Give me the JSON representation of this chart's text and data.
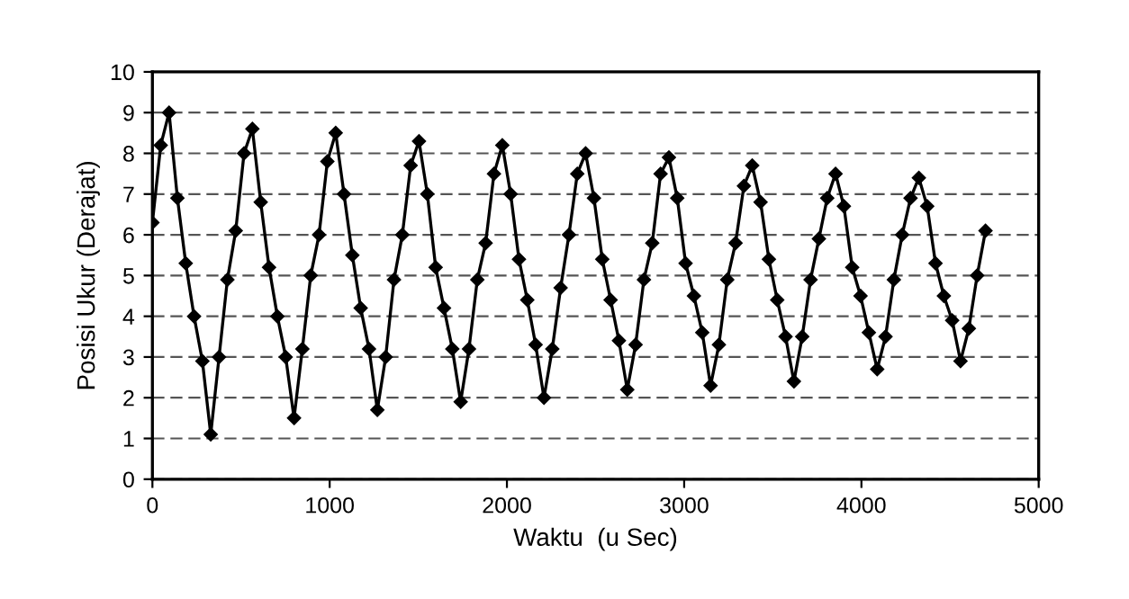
{
  "chart_data": {
    "type": "line",
    "xlabel": "Waktu  (u Sec)",
    "ylabel": "Posisi Ukur (Derajat)",
    "x": [
      0,
      47,
      94,
      141,
      188,
      235,
      282,
      329,
      376,
      423,
      470,
      517,
      564,
      611,
      658,
      705,
      752,
      799,
      846,
      893,
      940,
      987,
      1034,
      1081,
      1128,
      1175,
      1222,
      1269,
      1316,
      1363,
      1410,
      1457,
      1504,
      1551,
      1598,
      1645,
      1692,
      1739,
      1786,
      1833,
      1880,
      1927,
      1974,
      2021,
      2068,
      2115,
      2162,
      2209,
      2256,
      2303,
      2350,
      2397,
      2444,
      2491,
      2538,
      2585,
      2632,
      2679,
      2726,
      2773,
      2820,
      2867,
      2914,
      2961,
      3008,
      3055,
      3102,
      3149,
      3196,
      3243,
      3290,
      3337,
      3384,
      3431,
      3478,
      3525,
      3572,
      3619,
      3666,
      3713,
      3760,
      3807,
      3854,
      3901,
      3948,
      3995,
      4042,
      4089,
      4136,
      4183,
      4230,
      4277,
      4324,
      4371,
      4418,
      4465,
      4512,
      4559,
      4606,
      4653,
      4700
    ],
    "series": [
      {
        "color": "#000000",
        "values": [
          6.3,
          8.2,
          9.0,
          6.9,
          5.3,
          4.0,
          2.9,
          1.1,
          3.0,
          4.9,
          6.1,
          8.0,
          8.6,
          6.8,
          5.2,
          4.0,
          3.0,
          1.5,
          3.2,
          5.0,
          6.0,
          7.8,
          8.5,
          7.0,
          5.5,
          4.2,
          3.2,
          1.7,
          3.0,
          4.9,
          6.0,
          7.7,
          8.3,
          7.0,
          5.2,
          4.2,
          3.2,
          1.9,
          3.2,
          4.9,
          5.8,
          7.5,
          8.2,
          7.0,
          5.4,
          4.4,
          3.3,
          2.0,
          3.2,
          4.7,
          6.0,
          7.5,
          8.0,
          6.9,
          5.4,
          4.4,
          3.4,
          2.2,
          3.3,
          4.9,
          5.8,
          7.5,
          7.9,
          6.9,
          5.3,
          4.5,
          3.6,
          2.3,
          3.3,
          4.9,
          5.8,
          7.2,
          7.7,
          6.8,
          5.4,
          4.4,
          3.5,
          2.4,
          3.5,
          4.9,
          5.9,
          6.9,
          7.5,
          6.7,
          5.2,
          4.5,
          3.6,
          2.7,
          3.5,
          4.9,
          6.0,
          6.9,
          7.4,
          6.7,
          5.3,
          4.5,
          3.9,
          2.9,
          3.7,
          5.0,
          6.1
        ]
      }
    ],
    "xlim": [
      0,
      5000
    ],
    "xticks": [
      0,
      1000,
      2000,
      3000,
      4000,
      5000
    ],
    "ylim": [
      0,
      10
    ],
    "yticks": [
      0,
      1,
      2,
      3,
      4,
      5,
      6,
      7,
      8,
      9,
      10
    ],
    "grid": "y",
    "marker": "diamond",
    "line_style": "solid"
  }
}
